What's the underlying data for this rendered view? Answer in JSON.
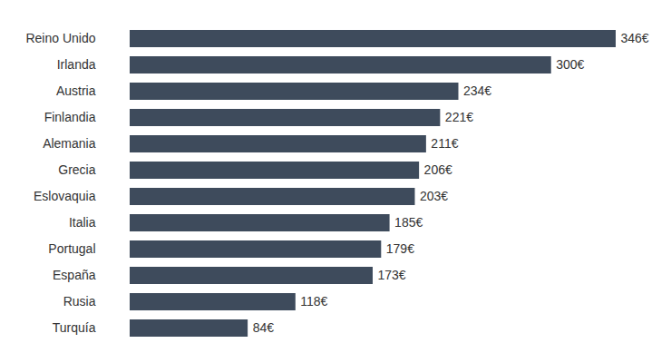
{
  "chart_data": {
    "type": "bar",
    "orientation": "horizontal",
    "categories": [
      "Reino Unido",
      "Irlanda",
      "Austria",
      "Finlandia",
      "Alemania",
      "Grecia",
      "Eslovaquia",
      "Italia",
      "Portugal",
      "España",
      "Rusia",
      "Turquía"
    ],
    "values": [
      346,
      300,
      234,
      221,
      211,
      206,
      203,
      185,
      179,
      173,
      118,
      84
    ],
    "value_labels": [
      "346€",
      "300€",
      "234€",
      "221€",
      "211€",
      "206€",
      "203€",
      "185€",
      "179€",
      "173€",
      "118€",
      "84€"
    ],
    "color": "#3e4b5c",
    "xlim": [
      0,
      346
    ],
    "data_labels": true,
    "tick_labels": "y"
  }
}
